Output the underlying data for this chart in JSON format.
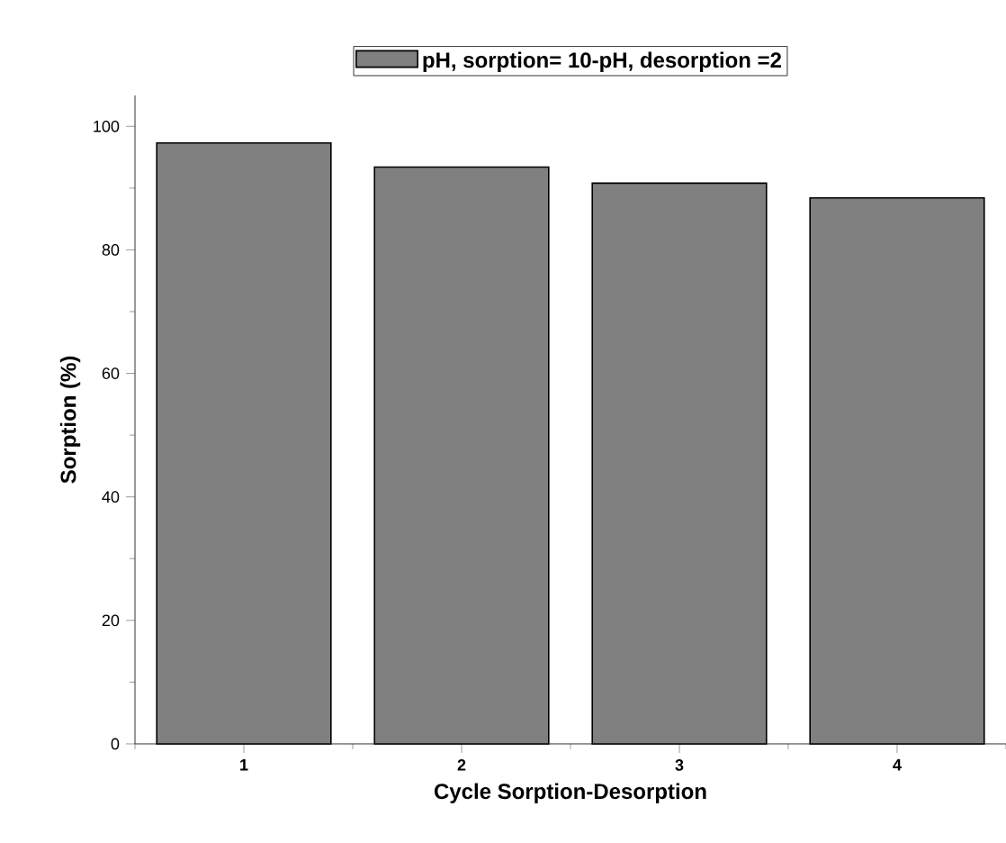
{
  "chart_data": {
    "type": "bar",
    "xlabel": "Cycle Sorption-Desorption",
    "ylabel": "Sorption (%)",
    "categories": [
      "1",
      "2",
      "3",
      "4"
    ],
    "series": [
      {
        "name": "pH, sorption= 10-pH, desorption =2",
        "color": "#808080",
        "values": [
          97.3,
          93.4,
          90.8,
          88.4
        ]
      }
    ],
    "ylim": [
      0,
      105
    ],
    "yticks": [
      0,
      20,
      40,
      60,
      80,
      100
    ],
    "grid": false,
    "legend": "top"
  }
}
